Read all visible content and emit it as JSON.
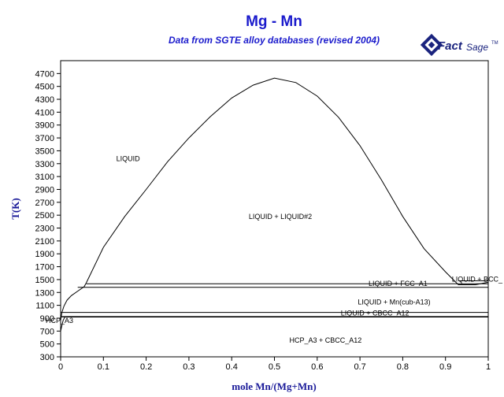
{
  "title": "Mg - Mn",
  "subtitle": "Data from SGTE alloy databases (revised 2004)",
  "logo": {
    "main": "Fact",
    "sub": "Sage",
    "tm": "TM",
    "icon": "factsage-logo-icon",
    "color": "#1a237e"
  },
  "chart_data": {
    "type": "line",
    "title": "Mg - Mn",
    "subtitle": "Data from SGTE alloy databases (revised 2004)",
    "xlabel": "mole Mn/(Mg+Mn)",
    "ylabel": "T(K)",
    "xlim": [
      0,
      1
    ],
    "ylim": [
      300,
      4900
    ],
    "x_ticks": [
      0,
      0.1,
      0.2,
      0.3,
      0.4,
      0.5,
      0.6,
      0.7,
      0.8,
      0.9,
      1
    ],
    "x_tick_labels": [
      "0",
      "0.1",
      "0.2",
      "0.3",
      "0.4",
      "0.5",
      "0.6",
      "0.7",
      "0.8",
      "0.9",
      "1"
    ],
    "y_ticks": [
      300,
      500,
      700,
      900,
      1100,
      1300,
      1500,
      1700,
      1900,
      2100,
      2300,
      2500,
      2700,
      2900,
      3100,
      3300,
      3500,
      3700,
      3900,
      4100,
      4300,
      4500,
      4700
    ],
    "y_tick_labels": [
      "300",
      "500",
      "700",
      "900",
      "1100",
      "1300",
      "1500",
      "1700",
      "1900",
      "2100",
      "2300",
      "2500",
      "2700",
      "2900",
      "3100",
      "3300",
      "3500",
      "3700",
      "3900",
      "4100",
      "4300",
      "4500",
      "4700"
    ],
    "grid": false,
    "series": [
      {
        "points": [
          [
            0,
            870
          ],
          [
            0.003,
            990
          ],
          [
            0.008,
            1090
          ],
          [
            0.015,
            1180
          ],
          [
            0.025,
            1250
          ],
          [
            0.04,
            1320
          ],
          [
            0.055,
            1390
          ],
          [
            0.06,
            1450
          ]
        ]
      },
      {
        "points": [
          [
            0.06,
            1450
          ],
          [
            0.1,
            2000
          ],
          [
            0.15,
            2480
          ],
          [
            0.2,
            2900
          ],
          [
            0.25,
            3330
          ],
          [
            0.3,
            3700
          ],
          [
            0.35,
            4030
          ],
          [
            0.4,
            4320
          ],
          [
            0.45,
            4520
          ],
          [
            0.5,
            4630
          ],
          [
            0.55,
            4560
          ],
          [
            0.6,
            4350
          ],
          [
            0.65,
            4020
          ],
          [
            0.7,
            3580
          ],
          [
            0.75,
            3050
          ],
          [
            0.8,
            2480
          ],
          [
            0.85,
            1980
          ],
          [
            0.9,
            1620
          ],
          [
            0.93,
            1420
          ]
        ]
      },
      {
        "points": [
          [
            0.06,
            1435
          ],
          [
            1,
            1435
          ]
        ]
      },
      {
        "points": [
          [
            0.04,
            1380
          ],
          [
            1,
            1380
          ]
        ]
      },
      {
        "points": [
          [
            0.93,
            1420
          ],
          [
            0.97,
            1420
          ],
          [
            1,
            1460
          ]
        ]
      },
      {
        "points": [
          [
            0.93,
            1480
          ],
          [
            1,
            1480
          ]
        ]
      },
      {
        "points": [
          [
            0,
            990
          ],
          [
            1,
            990
          ]
        ]
      },
      {
        "points": [
          [
            0,
            925
          ],
          [
            1,
            925
          ]
        ]
      },
      {
        "points": [
          [
            0,
            922
          ],
          [
            0.02,
            918
          ],
          [
            1,
            918
          ]
        ]
      },
      {
        "points": [
          [
            0,
            700
          ],
          [
            0.002,
            760
          ],
          [
            0.004,
            820
          ],
          [
            0.006,
            870
          ],
          [
            0.01,
            918
          ]
        ]
      },
      {
        "points": [
          [
            1,
            925
          ],
          [
            1,
            1480
          ]
        ]
      }
    ],
    "annotations": [
      {
        "text": "LIQUID",
        "x": 0.13,
        "y": 3340
      },
      {
        "text": "LIQUID + LIQUID#2",
        "x": 0.44,
        "y": 2440
      },
      {
        "text": "LIQUID + BCC_",
        "x": 0.915,
        "y": 1470
      },
      {
        "text": "LIQUID + FCC_A1",
        "x": 0.72,
        "y": 1400
      },
      {
        "text": "LIQUID + Mn(cub-A13)",
        "x": 0.695,
        "y": 1115
      },
      {
        "text": "LIQUID + CBCC_A12",
        "x": 0.655,
        "y": 945
      },
      {
        "text": "HCP_A3",
        "x": -0.035,
        "y": 825
      },
      {
        "text": "HCP_A3 + CBCC_A12",
        "x": 0.535,
        "y": 520
      }
    ]
  }
}
